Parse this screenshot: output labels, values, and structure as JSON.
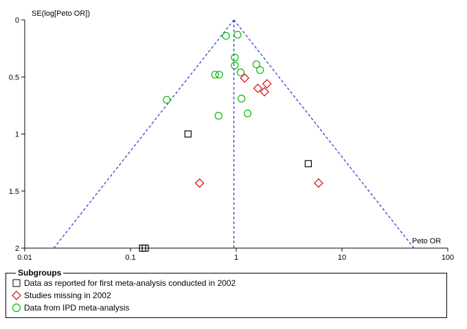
{
  "chart_data": {
    "type": "scatter",
    "title": "",
    "xlabel": "Peto OR",
    "ylabel": "SE(log[Peto OR])",
    "x_scale": "log",
    "xlim": [
      0.01,
      100
    ],
    "ylim": [
      0,
      2
    ],
    "y_reversed": true,
    "x_ticks": [
      "0.01",
      "0.1",
      "1",
      "10",
      "100"
    ],
    "x_tick_values": [
      0.01,
      0.1,
      1,
      10,
      100
    ],
    "y_ticks": [
      "0",
      "0.5",
      "1",
      "1.5",
      "2"
    ],
    "y_tick_values": [
      0,
      0.5,
      1,
      1.5,
      2
    ],
    "pooled_estimate": 0.95,
    "funnel_se_max": 2,
    "legend_title": "Subgroups",
    "legend_placement": "bottom",
    "series": [
      {
        "name": "Data as reported for first meta-analysis conducted in 2002",
        "marker": "square",
        "color": "#000000",
        "points": [
          {
            "x": 0.35,
            "y": 1.0
          },
          {
            "x": 4.8,
            "y": 1.26
          },
          {
            "x": 0.13,
            "y": 2.0
          },
          {
            "x": 0.138,
            "y": 2.0
          }
        ]
      },
      {
        "name": "Studies missing in 2002",
        "marker": "diamond",
        "color": "#e00000",
        "points": [
          {
            "x": 1.2,
            "y": 0.51
          },
          {
            "x": 1.6,
            "y": 0.6
          },
          {
            "x": 1.85,
            "y": 0.63
          },
          {
            "x": 1.95,
            "y": 0.56
          },
          {
            "x": 0.45,
            "y": 1.43
          },
          {
            "x": 6.0,
            "y": 1.43
          }
        ]
      },
      {
        "name": "Data from IPD meta-analysis",
        "marker": "circle",
        "color": "#00bb00",
        "points": [
          {
            "x": 0.8,
            "y": 0.14
          },
          {
            "x": 1.03,
            "y": 0.13
          },
          {
            "x": 0.97,
            "y": 0.33
          },
          {
            "x": 0.97,
            "y": 0.4
          },
          {
            "x": 1.1,
            "y": 0.46
          },
          {
            "x": 1.55,
            "y": 0.39
          },
          {
            "x": 1.68,
            "y": 0.44
          },
          {
            "x": 0.63,
            "y": 0.48
          },
          {
            "x": 0.69,
            "y": 0.48
          },
          {
            "x": 0.22,
            "y": 0.7
          },
          {
            "x": 1.12,
            "y": 0.69
          },
          {
            "x": 1.28,
            "y": 0.82
          },
          {
            "x": 0.68,
            "y": 0.84
          }
        ]
      }
    ]
  }
}
